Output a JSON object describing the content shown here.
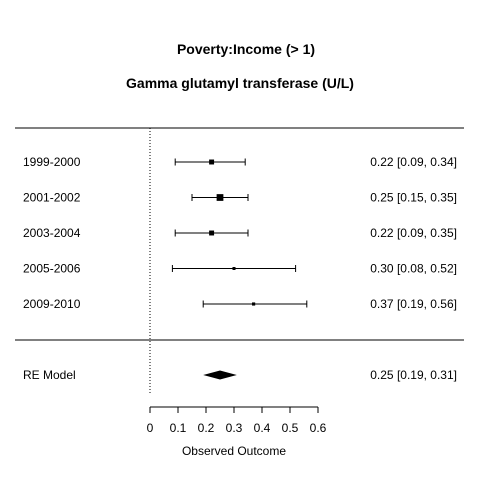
{
  "chart_data": {
    "type": "forest",
    "title": "Poverty:Income (> 1)",
    "subtitle": "Gamma glutamyl transferase (U/L)",
    "xlabel": "Observed Outcome",
    "xlim": [
      0,
      0.6
    ],
    "xticks": [
      0,
      0.1,
      0.2,
      0.3,
      0.4,
      0.5,
      0.6
    ],
    "xtick_labels": [
      "0",
      "0.1",
      "0.2",
      "0.3",
      "0.4",
      "0.5",
      "0.6"
    ],
    "reference_line": 0,
    "studies": [
      {
        "label": "1999-2000",
        "estimate": 0.22,
        "lower": 0.09,
        "upper": 0.34,
        "ci_text": "0.22 [0.09, 0.34]",
        "weight": 0.55
      },
      {
        "label": "2001-2002",
        "estimate": 0.25,
        "lower": 0.15,
        "upper": 0.35,
        "ci_text": "0.25 [0.15, 0.35]",
        "weight": 0.75
      },
      {
        "label": "2003-2004",
        "estimate": 0.22,
        "lower": 0.09,
        "upper": 0.35,
        "ci_text": "0.22 [0.09, 0.35]",
        "weight": 0.55
      },
      {
        "label": "2005-2006",
        "estimate": 0.3,
        "lower": 0.08,
        "upper": 0.52,
        "ci_text": "0.30 [0.08, 0.52]",
        "weight": 0.25
      },
      {
        "label": "2009-2010",
        "estimate": 0.37,
        "lower": 0.19,
        "upper": 0.56,
        "ci_text": "0.37 [0.19, 0.56]",
        "weight": 0.35
      }
    ],
    "summary": {
      "label": "RE Model",
      "estimate": 0.25,
      "lower": 0.19,
      "upper": 0.31,
      "ci_text": "0.25 [0.19, 0.31]"
    }
  }
}
